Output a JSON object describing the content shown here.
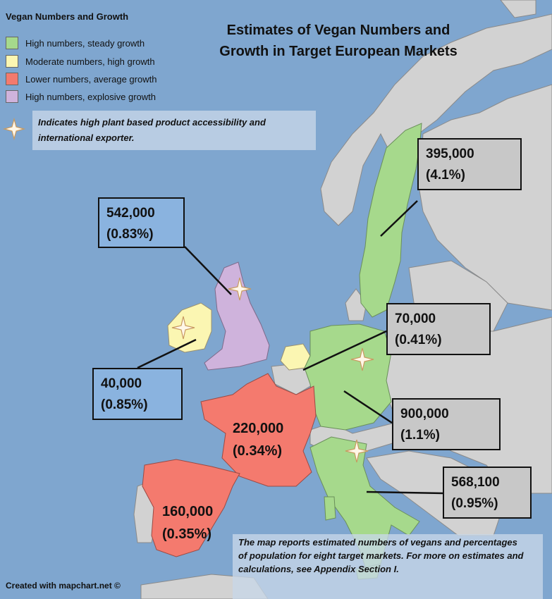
{
  "title": {
    "line1": "Estimates of Vegan Numbers and",
    "line2": "Growth in Target European Markets"
  },
  "legend": {
    "title": "Vegan Numbers and Growth",
    "items": [
      {
        "label": "High numbers, steady growth",
        "color": "#a6d98c"
      },
      {
        "label": "Moderate numbers, high growth",
        "color": "#fbf6b2"
      },
      {
        "label": "Lower numbers, average growth",
        "color": "#f47a6e"
      },
      {
        "label": "High numbers, explosive growth",
        "color": "#cfb3dc"
      }
    ]
  },
  "star_note": "Indicates high plant based product accessibility and international exporter.",
  "markets": {
    "uk": {
      "count": "542,000",
      "pct": "(0.83%)"
    },
    "ireland": {
      "count": "40,000",
      "pct": "(0.85%)"
    },
    "sweden": {
      "count": "395,000",
      "pct": "(4.1%)"
    },
    "netherlands": {
      "count": "70,000",
      "pct": "(0.41%)"
    },
    "germany": {
      "count": "900,000",
      "pct": "(1.1%)"
    },
    "italy": {
      "count": "568,100",
      "pct": "(0.95%)"
    },
    "france": {
      "count": "220,000",
      "pct": "(0.34%)"
    },
    "spain": {
      "count": "160,000",
      "pct": "(0.35%)"
    }
  },
  "footnote": "The map reports estimated numbers of vegans and percentages of population for eight target markets. For more on estimates and calculations, see Appendix Section I.",
  "credit": "Created with mapchart.net ©",
  "colors": {
    "sea": "#7fa6cf",
    "other_land": "#d2d2d2"
  }
}
